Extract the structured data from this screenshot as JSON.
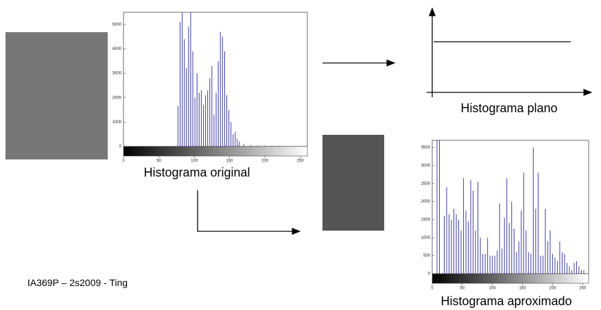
{
  "chart_data": [
    {
      "type": "stem",
      "title": "Histograma original",
      "color": "#3a3aa8",
      "x": [
        77,
        80,
        83,
        86,
        89,
        92,
        95,
        98,
        101,
        104,
        107,
        110,
        113,
        116,
        119,
        122,
        125,
        128,
        131,
        134,
        137,
        140,
        143,
        146,
        149,
        152,
        155,
        158,
        161,
        164,
        170,
        180,
        190,
        200,
        210,
        220
      ],
      "values": [
        1650,
        5100,
        5500,
        4400,
        3200,
        4900,
        5500,
        3900,
        2000,
        3000,
        2200,
        2300,
        1700,
        2100,
        2300,
        2800,
        3300,
        1300,
        2200,
        3500,
        4700,
        4500,
        3900,
        2100,
        1500,
        1000,
        500,
        600,
        300,
        200,
        100,
        50,
        50,
        40,
        30,
        20
      ],
      "xlim": [
        0,
        260
      ],
      "xticks": [
        0,
        50,
        100,
        150,
        200,
        250
      ],
      "ylim": [
        0,
        5500
      ],
      "yticks": [
        0,
        1000,
        2000,
        3000,
        4000,
        5000
      ]
    },
    {
      "type": "stem",
      "title": "Histograma aproximado",
      "color": "#3a3aa8",
      "x": [
        8,
        12,
        20,
        24,
        28,
        32,
        36,
        40,
        44,
        48,
        52,
        56,
        60,
        64,
        68,
        72,
        76,
        80,
        84,
        88,
        92,
        96,
        100,
        104,
        108,
        112,
        116,
        120,
        124,
        128,
        132,
        136,
        140,
        144,
        148,
        152,
        156,
        160,
        164,
        168,
        172,
        176,
        180,
        184,
        188,
        192,
        196,
        200,
        204,
        208,
        212,
        216,
        220,
        224,
        228,
        232,
        236,
        240,
        244,
        248,
        252
      ],
      "values": [
        3700,
        3700,
        1600,
        2400,
        1650,
        1500,
        1800,
        1650,
        1500,
        1200,
        2650,
        1750,
        1450,
        2600,
        2300,
        1200,
        2550,
        1000,
        550,
        550,
        1000,
        500,
        500,
        500,
        650,
        1950,
        700,
        1550,
        2650,
        1400,
        2000,
        1250,
        600,
        900,
        1750,
        2800,
        1200,
        600,
        550,
        3500,
        1800,
        2800,
        500,
        500,
        1800,
        900,
        1200,
        550,
        450,
        350,
        900,
        600,
        550,
        300,
        200,
        100,
        300,
        350,
        200,
        100,
        100
      ],
      "xlim": [
        0,
        260
      ],
      "xticks": [
        0,
        50,
        100,
        150,
        200,
        250
      ],
      "ylim": [
        0,
        3700
      ],
      "yticks": [
        0,
        500,
        1000,
        1500,
        2000,
        2500,
        3000,
        3500
      ]
    }
  ],
  "flat_histogram_label": "Histograma plano",
  "footer": "IA369P – 2s2009 - Ting"
}
